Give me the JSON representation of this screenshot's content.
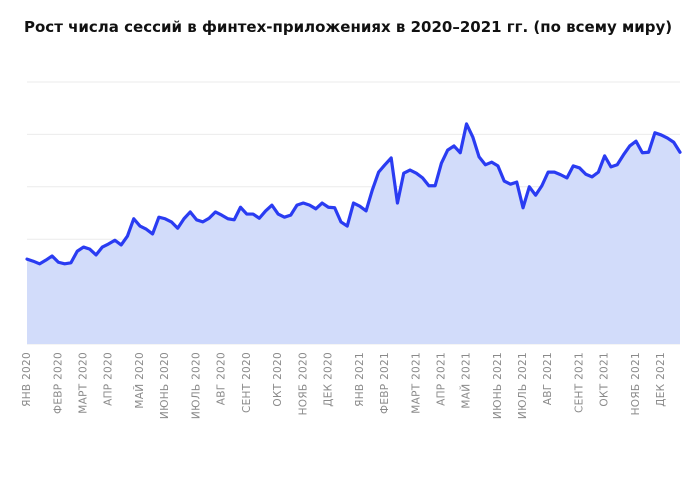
{
  "chart_data": {
    "type": "area",
    "title": "Рост числа сессий в финтех-приложениях в 2020–2021 гг. (по всему миру)",
    "categories": [
      "ЯНВ 2020",
      null,
      null,
      null,
      null,
      "ФЕВР 2020",
      null,
      null,
      null,
      "МАРТ 2020",
      null,
      null,
      null,
      "АПР 2020",
      null,
      null,
      null,
      null,
      "МАЙ 2020",
      null,
      null,
      null,
      "ИЮНЬ 2020",
      null,
      null,
      null,
      null,
      "ИЮЛЬ 2020",
      null,
      null,
      null,
      "АВГ 2020",
      null,
      null,
      null,
      "СЕНТ 2020",
      null,
      null,
      null,
      null,
      "ОКТ 2020",
      null,
      null,
      null,
      "НОЯБ 2020",
      null,
      null,
      null,
      "ДЕК 2020",
      null,
      null,
      null,
      null,
      "ЯНВ 2021",
      null,
      null,
      null,
      "ФЕВР 2021",
      null,
      null,
      null,
      null,
      "МАРТ 2021",
      null,
      null,
      null,
      "АПР 2021",
      null,
      null,
      null,
      "МАЙ 2021",
      null,
      null,
      null,
      null,
      "ИЮНЬ 2021",
      null,
      null,
      null,
      "ИЮЛЬ 2021",
      null,
      null,
      null,
      "АВГ 2021",
      null,
      null,
      null,
      null,
      "СЕНТ 2021",
      null,
      null,
      null,
      "ОКТ 2021",
      null,
      null,
      null,
      null,
      "НОЯБ 2021",
      null,
      null,
      null,
      "ДЕК 2021",
      null,
      null,
      null
    ],
    "values": [
      1.62,
      1.58,
      1.53,
      1.6,
      1.68,
      1.56,
      1.53,
      1.55,
      1.77,
      1.85,
      1.81,
      1.7,
      1.85,
      1.91,
      1.98,
      1.89,
      2.06,
      2.39,
      2.25,
      2.19,
      2.1,
      2.42,
      2.39,
      2.33,
      2.21,
      2.39,
      2.52,
      2.37,
      2.33,
      2.4,
      2.52,
      2.46,
      2.39,
      2.37,
      2.61,
      2.48,
      2.48,
      2.4,
      2.54,
      2.65,
      2.48,
      2.42,
      2.46,
      2.65,
      2.69,
      2.65,
      2.58,
      2.69,
      2.61,
      2.6,
      2.33,
      2.25,
      2.69,
      2.63,
      2.54,
      2.94,
      3.28,
      3.42,
      3.55,
      2.69,
      3.26,
      3.32,
      3.26,
      3.17,
      3.02,
      3.02,
      3.45,
      3.7,
      3.78,
      3.65,
      4.2,
      3.95,
      3.57,
      3.42,
      3.47,
      3.4,
      3.11,
      3.05,
      3.09,
      2.6,
      3.0,
      2.84,
      3.02,
      3.28,
      3.28,
      3.23,
      3.17,
      3.4,
      3.36,
      3.24,
      3.19,
      3.28,
      3.59,
      3.38,
      3.42,
      3.61,
      3.78,
      3.87,
      3.65,
      3.66,
      4.03,
      3.99,
      3.93,
      3.85,
      3.66
    ],
    "color": "#2a3cf2",
    "fill_color": "#d2dcfa",
    "ylim": [
      0,
      5
    ],
    "yticks": [
      0,
      1,
      2,
      3,
      4,
      5
    ],
    "ytick_labels": false,
    "grid": true
  }
}
